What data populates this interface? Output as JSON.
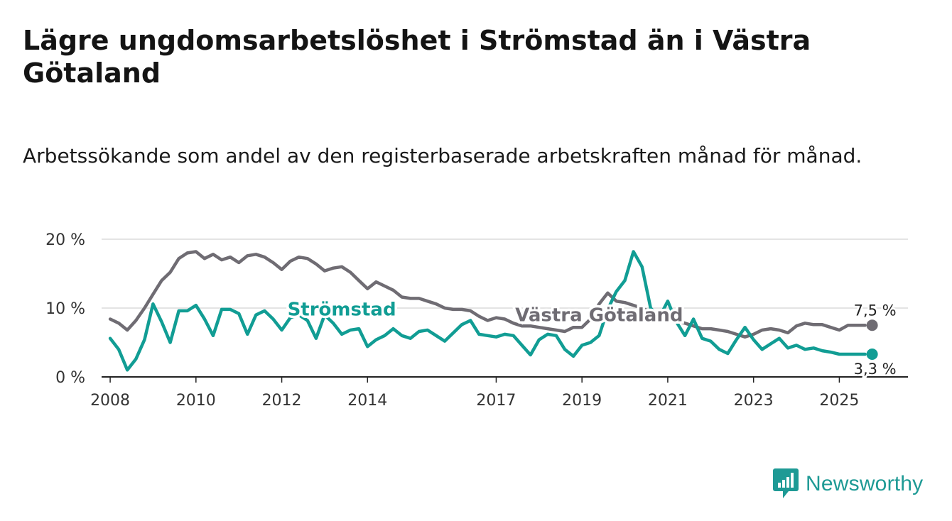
{
  "title": "Lägre ungdomsarbetslöshet i Strömstad än i Västra Götaland",
  "subtitle": "Arbetssökande som andel av den registerbaserade arbetskraften månad för månad.",
  "brand": {
    "name": "Newsworthy",
    "icon": "chart-bubble-icon",
    "color": "#1e9a95"
  },
  "chart_data": {
    "type": "line",
    "title": "Lägre ungdomsarbetslöshet i Strömstad än i Västra Götaland",
    "xlabel": "",
    "ylabel": "",
    "xlim": [
      2007.8,
      2026.6
    ],
    "ylim": [
      0,
      20
    ],
    "x_ticks": [
      {
        "value": 2008,
        "label": "2008"
      },
      {
        "value": 2010,
        "label": "2010"
      },
      {
        "value": 2012,
        "label": "2012"
      },
      {
        "value": 2014,
        "label": "2014"
      },
      {
        "value": 2017,
        "label": "2017"
      },
      {
        "value": 2019,
        "label": "2019"
      },
      {
        "value": 2021,
        "label": "2021"
      },
      {
        "value": 2023,
        "label": "2023"
      },
      {
        "value": 2025,
        "label": "2025"
      }
    ],
    "y_ticks": [
      {
        "value": 0,
        "label": "0 %"
      },
      {
        "value": 10,
        "label": "10 %"
      },
      {
        "value": 20,
        "label": "20 %"
      }
    ],
    "grid": true,
    "series": [
      {
        "name": "Västra Götaland",
        "color": "#6f6c73",
        "label": {
          "text": "Västra Götaland",
          "x": 2019.4,
          "y": 8.1
        },
        "end_label": "7,5 %",
        "x": [
          2008.0,
          2008.2,
          2008.4,
          2008.6,
          2008.8,
          2009.0,
          2009.2,
          2009.4,
          2009.6,
          2009.8,
          2010.0,
          2010.2,
          2010.4,
          2010.6,
          2010.8,
          2011.0,
          2011.2,
          2011.4,
          2011.6,
          2011.8,
          2012.0,
          2012.2,
          2012.4,
          2012.6,
          2012.8,
          2013.0,
          2013.2,
          2013.4,
          2013.6,
          2013.8,
          2014.0,
          2014.2,
          2014.4,
          2014.6,
          2014.8,
          2015.0,
          2015.2,
          2015.4,
          2015.6,
          2015.8,
          2016.0,
          2016.2,
          2016.4,
          2016.6,
          2016.8,
          2017.0,
          2017.2,
          2017.4,
          2017.6,
          2017.8,
          2018.0,
          2018.2,
          2018.4,
          2018.6,
          2018.8,
          2019.0,
          2019.2,
          2019.4,
          2019.6,
          2019.8,
          2020.0,
          2020.2,
          2020.4,
          2020.6,
          2020.8,
          2021.0,
          2021.2,
          2021.4,
          2021.6,
          2021.8,
          2022.0,
          2022.2,
          2022.4,
          2022.6,
          2022.8,
          2023.0,
          2023.2,
          2023.4,
          2023.6,
          2023.8,
          2024.0,
          2024.2,
          2024.4,
          2024.6,
          2024.8,
          2025.0,
          2025.2,
          2025.4,
          2025.6
        ],
        "values": [
          8.4,
          7.8,
          6.8,
          8.2,
          10.0,
          12.0,
          14.0,
          15.2,
          17.2,
          18.0,
          18.2,
          17.2,
          17.8,
          17.0,
          17.4,
          16.6,
          17.6,
          17.8,
          17.4,
          16.6,
          15.6,
          16.8,
          17.4,
          17.2,
          16.4,
          15.4,
          15.8,
          16.0,
          15.2,
          14.0,
          12.8,
          13.8,
          13.2,
          12.6,
          11.6,
          11.4,
          11.4,
          11.0,
          10.6,
          10.0,
          9.8,
          9.8,
          9.6,
          8.8,
          8.2,
          8.6,
          8.4,
          7.8,
          7.4,
          7.4,
          7.2,
          7.0,
          6.8,
          6.6,
          7.2,
          7.2,
          8.4,
          10.6,
          12.2,
          11.0,
          10.8,
          10.4,
          10.0,
          9.4,
          9.0,
          8.6,
          8.2,
          7.8,
          7.4,
          7.0,
          7.0,
          6.8,
          6.6,
          6.2,
          5.8,
          6.2,
          6.8,
          7.0,
          6.8,
          6.4,
          7.4,
          7.8,
          7.6,
          7.6,
          7.2,
          6.8,
          7.5,
          7.5,
          7.5
        ]
      },
      {
        "name": "Strömstad",
        "color": "#119d94",
        "label": {
          "text": "Strömstad",
          "x": 2013.4,
          "y": 8.9
        },
        "end_label": "3,3 %",
        "x": [
          2008.0,
          2008.2,
          2008.4,
          2008.6,
          2008.8,
          2009.0,
          2009.2,
          2009.4,
          2009.6,
          2009.8,
          2010.0,
          2010.2,
          2010.4,
          2010.6,
          2010.8,
          2011.0,
          2011.2,
          2011.4,
          2011.6,
          2011.8,
          2012.0,
          2012.2,
          2012.4,
          2012.6,
          2012.8,
          2013.0,
          2013.2,
          2013.4,
          2013.6,
          2013.8,
          2014.0,
          2014.2,
          2014.4,
          2014.6,
          2014.8,
          2015.0,
          2015.2,
          2015.4,
          2015.6,
          2015.8,
          2016.0,
          2016.2,
          2016.4,
          2016.6,
          2016.8,
          2017.0,
          2017.2,
          2017.4,
          2017.6,
          2017.8,
          2018.0,
          2018.2,
          2018.4,
          2018.6,
          2018.8,
          2019.0,
          2019.2,
          2019.4,
          2019.6,
          2019.8,
          2020.0,
          2020.2,
          2020.4,
          2020.6,
          2020.8,
          2021.0,
          2021.2,
          2021.4,
          2021.6,
          2021.8,
          2022.0,
          2022.2,
          2022.4,
          2022.6,
          2022.8,
          2023.0,
          2023.2,
          2023.4,
          2023.6,
          2023.8,
          2024.0,
          2024.2,
          2024.4,
          2024.6,
          2024.8,
          2025.0,
          2025.2,
          2025.4,
          2025.6
        ],
        "values": [
          5.6,
          4.0,
          1.0,
          2.6,
          5.4,
          10.6,
          8.0,
          5.0,
          9.6,
          9.6,
          10.4,
          8.4,
          6.0,
          9.8,
          9.8,
          9.2,
          6.2,
          9.0,
          9.6,
          8.4,
          6.8,
          8.6,
          9.0,
          8.2,
          5.6,
          9.0,
          7.8,
          6.2,
          6.8,
          7.0,
          4.4,
          5.4,
          6.0,
          7.0,
          6.0,
          5.6,
          6.6,
          6.8,
          6.0,
          5.2,
          6.4,
          7.6,
          8.2,
          6.2,
          6.0,
          5.8,
          6.2,
          6.0,
          4.6,
          3.2,
          5.4,
          6.2,
          6.0,
          4.0,
          3.0,
          4.6,
          5.0,
          6.0,
          9.8,
          12.4,
          14.0,
          18.2,
          16.0,
          10.0,
          8.6,
          11.0,
          8.0,
          6.0,
          8.4,
          5.6,
          5.2,
          4.0,
          3.4,
          5.4,
          7.2,
          5.4,
          4.0,
          4.8,
          5.6,
          4.2,
          4.6,
          4.0,
          4.2,
          3.8,
          3.6,
          3.3,
          3.3,
          3.3,
          3.3
        ]
      }
    ]
  }
}
